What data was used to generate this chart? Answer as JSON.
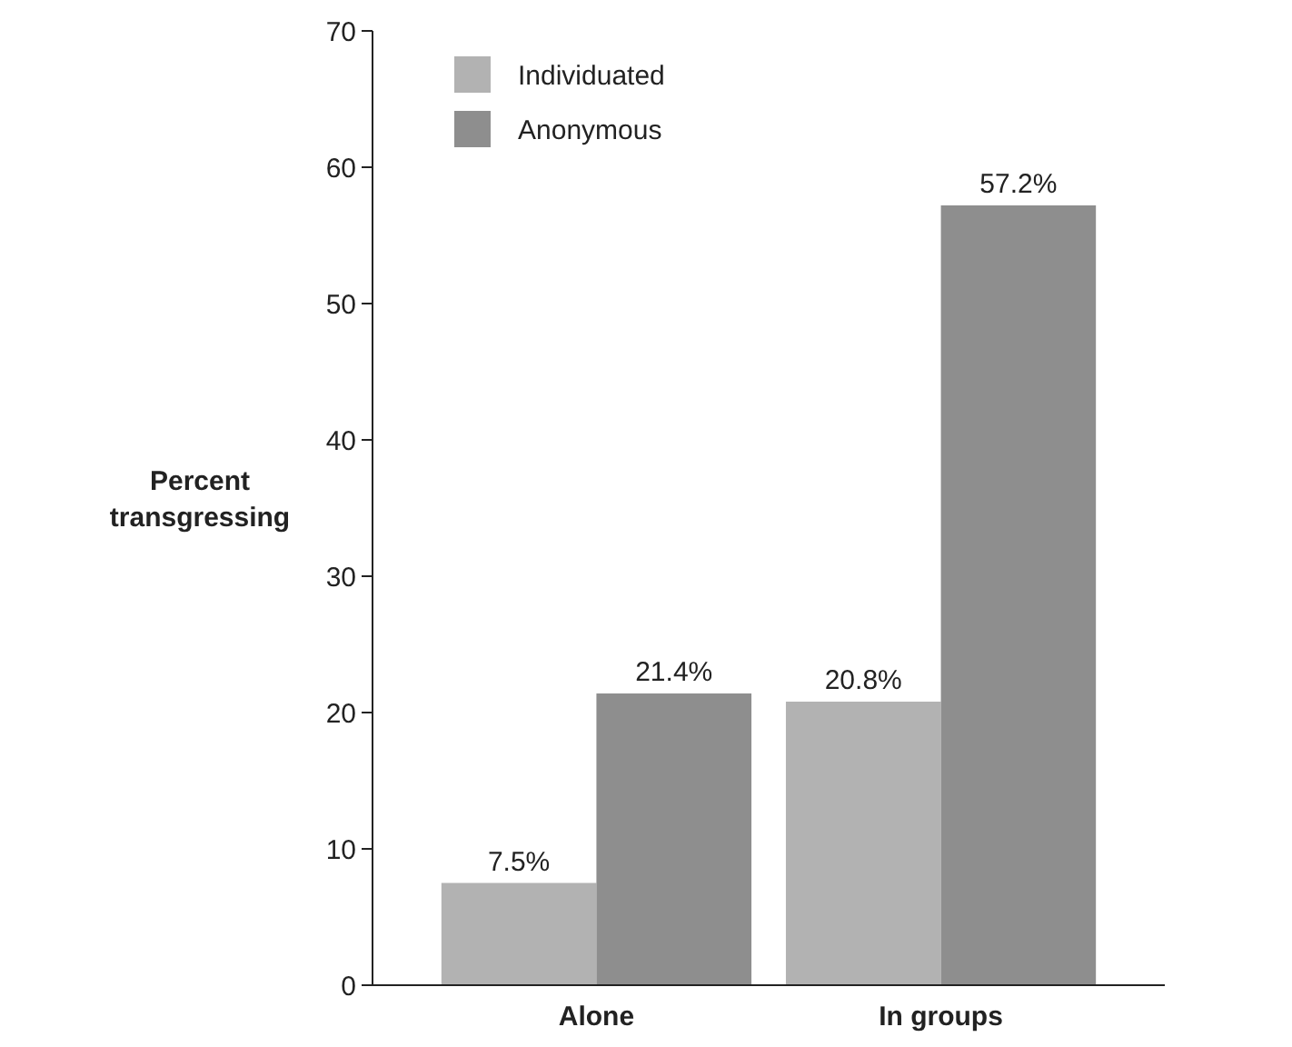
{
  "chart_data": {
    "type": "bar",
    "ylabel": "Percent transgressing",
    "categories": [
      "Alone",
      "In groups"
    ],
    "series": [
      {
        "name": "Individuated",
        "color": "#b2b2b2",
        "values": [
          7.5,
          20.8
        ],
        "value_labels": [
          "7.5%",
          "20.8%"
        ]
      },
      {
        "name": "Anonymous",
        "color": "#8e8e8e",
        "values": [
          21.4,
          57.2
        ],
        "value_labels": [
          "21.4%",
          "57.2%"
        ]
      }
    ],
    "ylim": [
      0,
      70
    ],
    "yticks": [
      0,
      10,
      20,
      30,
      40,
      50,
      60,
      70
    ],
    "grid": false,
    "legend": "top left"
  }
}
